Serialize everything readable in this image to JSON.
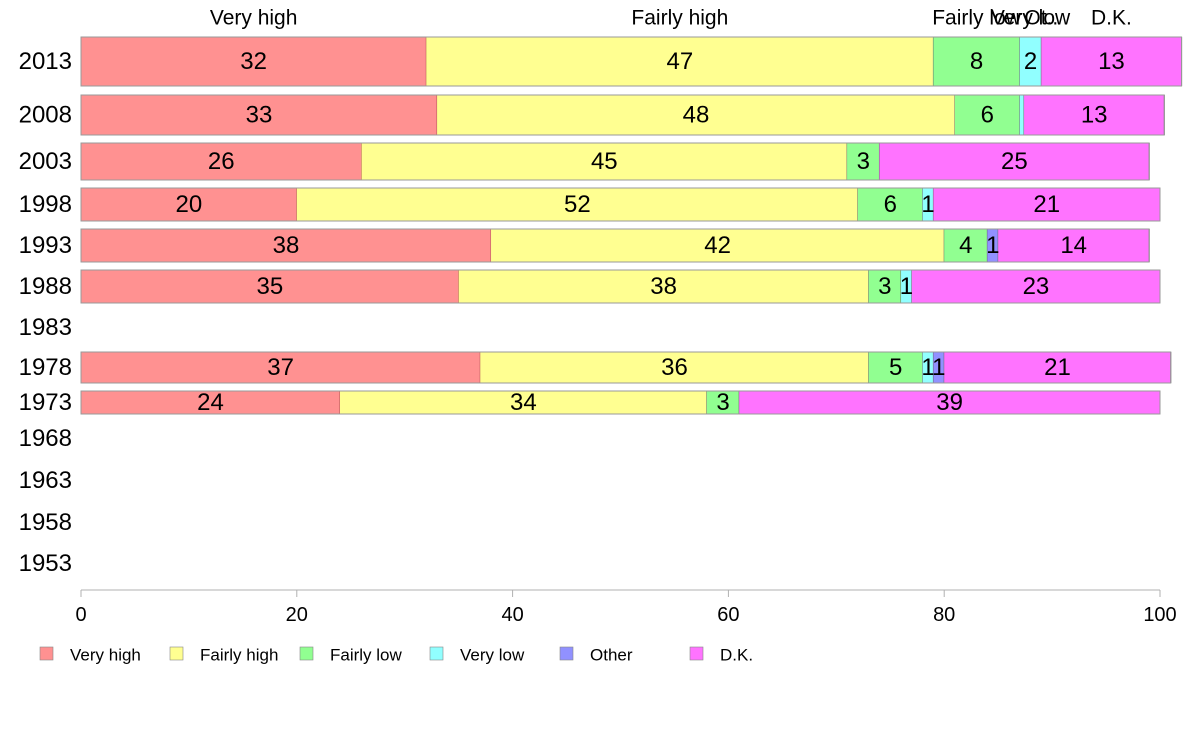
{
  "chart_data": {
    "type": "bar",
    "orientation": "horizontal",
    "stacked": true,
    "xlim": [
      0,
      100
    ],
    "x_ticks": [
      0,
      20,
      40,
      60,
      80,
      100
    ],
    "categories": [
      "2013",
      "2008",
      "2003",
      "1998",
      "1993",
      "1988",
      "1983",
      "1978",
      "1973",
      "1968",
      "1963",
      "1958",
      "1953"
    ],
    "series": [
      {
        "name": "Very high",
        "color": "#ff9191",
        "values": [
          32,
          33,
          26,
          20,
          38,
          35,
          null,
          37,
          24,
          null,
          null,
          null,
          null
        ]
      },
      {
        "name": "Fairly high",
        "color": "#ffff91",
        "values": [
          47,
          48,
          45,
          52,
          42,
          38,
          null,
          36,
          34,
          null,
          null,
          null,
          null
        ]
      },
      {
        "name": "Fairly low",
        "color": "#91ff91",
        "values": [
          8,
          6,
          3,
          6,
          4,
          3,
          null,
          5,
          3,
          null,
          null,
          null,
          null
        ]
      },
      {
        "name": "Very low",
        "color": "#91ffff",
        "values": [
          2,
          0.4,
          0,
          1,
          0,
          1,
          null,
          1,
          0,
          null,
          null,
          null,
          null
        ]
      },
      {
        "name": "Other",
        "color": "#9191ff",
        "values": [
          0,
          0,
          0,
          0,
          1,
          0,
          null,
          1,
          0,
          null,
          null,
          null,
          null
        ]
      },
      {
        "name": "D.K.",
        "color": "#ff73ff",
        "values": [
          13,
          13,
          25,
          21,
          14,
          23,
          null,
          21,
          39,
          null,
          null,
          null,
          null
        ]
      }
    ],
    "top_labels": [
      "Very high",
      "Fairly high",
      "Fairly low",
      "Very low",
      "Ot..",
      "D.K."
    ],
    "legend": {
      "position": "bottom",
      "entries": [
        "Very high",
        "Fairly high",
        "Fairly low",
        "Very low",
        "Other",
        "D.K."
      ]
    },
    "grid": false
  }
}
